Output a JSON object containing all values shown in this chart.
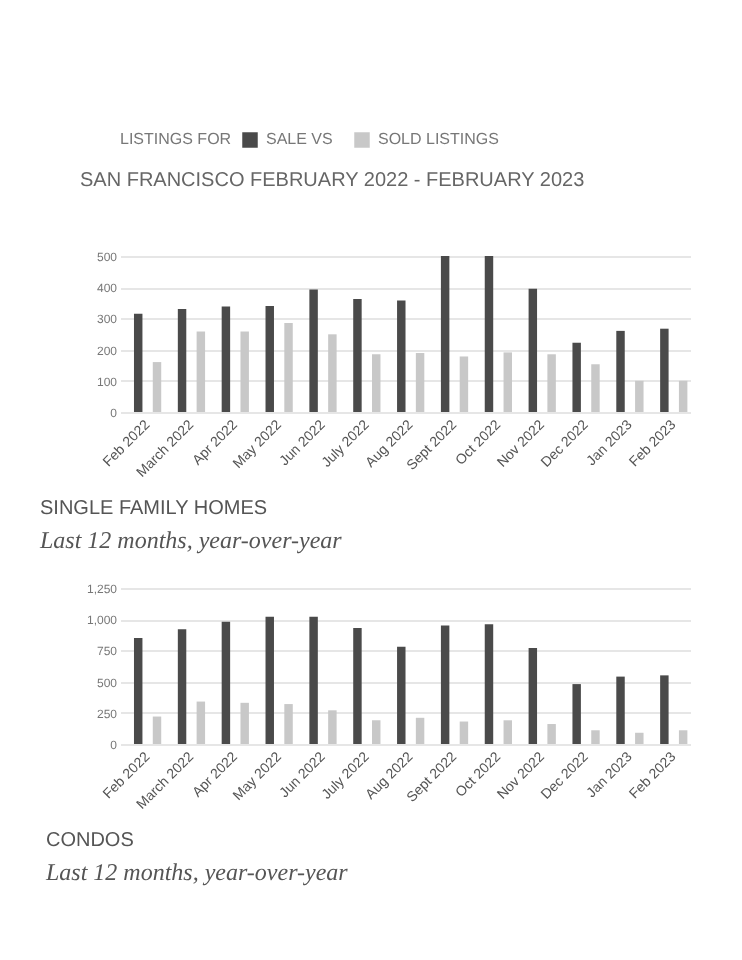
{
  "chart_data": [
    {
      "type": "bar",
      "title": "SINGLE FAMILY HOMES",
      "subtitle": "Last 12 months, year-over-year",
      "annotations": [
        "SAN FRANCISCO FEBRUARY 2022 - FEBRUARY 2023"
      ],
      "legend_title": "LISTINGS FOR",
      "legend": "top left",
      "categories": [
        "Feb 2022",
        "March 2022",
        "Apr 2022",
        "May 2022",
        "Jun 2022",
        "July 2022",
        "Aug 2022",
        "Sept 2022",
        "Oct 2022",
        "Nov 2022",
        "Dec 2022",
        "Jan 2023",
        "Feb 2023"
      ],
      "series": [
        {
          "name": "SALE VS",
          "color": "#4a4a4a",
          "values": [
            315,
            330,
            338,
            340,
            393,
            362,
            357,
            500,
            500,
            395,
            222,
            260,
            267
          ]
        },
        {
          "name": "SOLD LISTINGS",
          "color": "#c8c8c8",
          "values": [
            160,
            258,
            258,
            285,
            249,
            185,
            189,
            178,
            191,
            185,
            153,
            100,
            100
          ]
        }
      ],
      "ylim": [
        0,
        500
      ],
      "yticks": [
        0,
        100,
        200,
        300,
        400,
        500
      ],
      "grid": "y"
    },
    {
      "type": "bar",
      "title": "CONDOS",
      "subtitle": "Last 12 months, year-over-year",
      "categories": [
        "Feb 2022",
        "March 2022",
        "Apr 2022",
        "May 2022",
        "Jun 2022",
        "July 2022",
        "Aug 2022",
        "Sept 2022",
        "Oct 2022",
        "Nov 2022",
        "Dec 2022",
        "Jan 2023",
        "Feb 2023"
      ],
      "series": [
        {
          "color": "#4a4a4a",
          "values": [
            850,
            920,
            980,
            1020,
            1020,
            930,
            780,
            950,
            960,
            770,
            480,
            540,
            550
          ]
        },
        {
          "color": "#c8c8c8",
          "values": [
            220,
            340,
            330,
            320,
            270,
            190,
            210,
            180,
            190,
            160,
            110,
            90,
            110
          ]
        }
      ],
      "ylim": [
        0,
        1250
      ],
      "yticks": [
        0,
        250,
        500,
        750,
        {
          "value": 1000,
          "label": "1,000"
        },
        {
          "value": 1250,
          "label": "1,250"
        }
      ],
      "grid": "y"
    }
  ]
}
